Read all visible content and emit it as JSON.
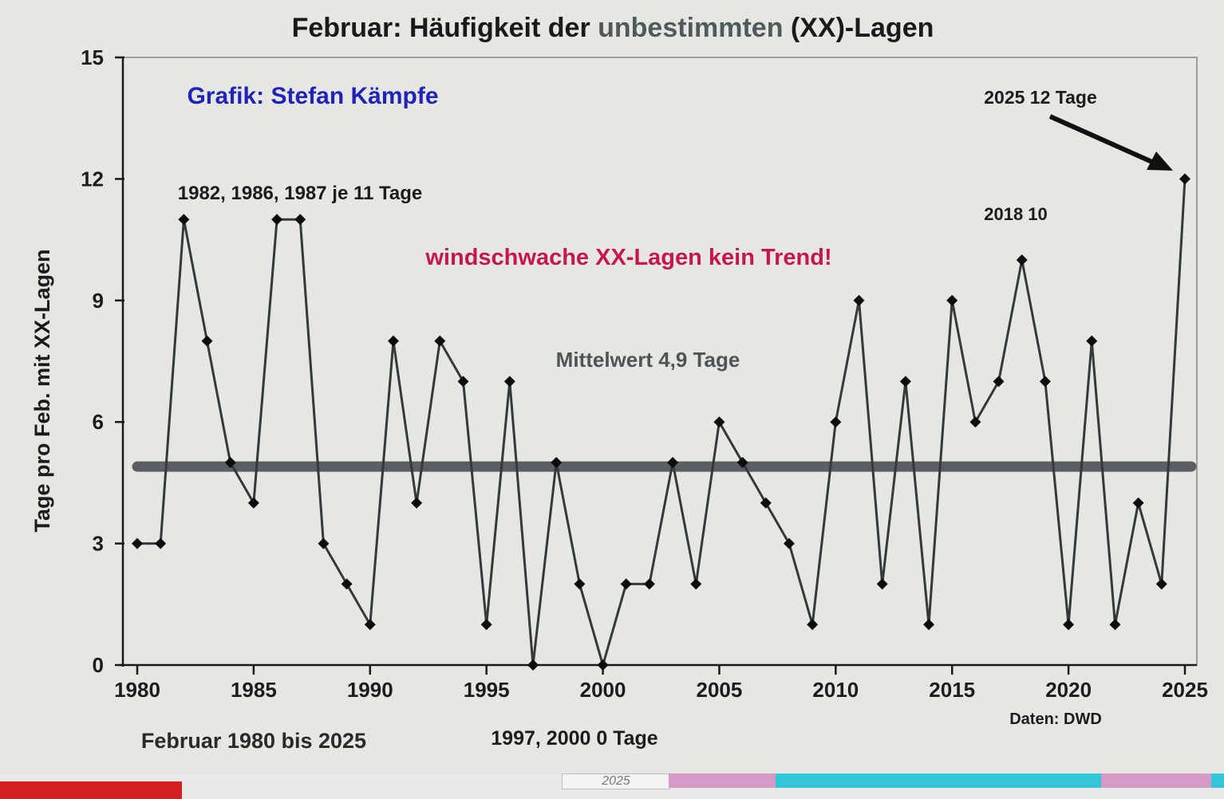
{
  "chart_data": {
    "type": "line",
    "title_prefix": "Februar: Häufigkeit der ",
    "title_highlight": "unbestimmten",
    "title_suffix": " (XX)-Lagen",
    "ylabel": "Tage pro Feb. mit XX-Lagen",
    "xlabel": "",
    "xlim": [
      1980,
      2025
    ],
    "ylim": [
      0,
      15
    ],
    "x_ticks": [
      1980,
      1985,
      1990,
      1995,
      2000,
      2005,
      2010,
      2015,
      2020,
      2025
    ],
    "y_ticks": [
      0,
      3,
      6,
      9,
      12,
      15
    ],
    "grid": false,
    "legend": "none",
    "series": [
      {
        "x": [
          1980,
          1981,
          1982,
          1983,
          1984,
          1985,
          1986,
          1987,
          1988,
          1989,
          1990,
          1991,
          1992,
          1993,
          1994,
          1995,
          1996,
          1997,
          1998,
          1999,
          2000,
          2001,
          2002,
          2003,
          2004,
          2005,
          2006,
          2007,
          2008,
          2009,
          2010,
          2011,
          2012,
          2013,
          2014,
          2015,
          2016,
          2017,
          2018,
          2019,
          2020,
          2021,
          2022,
          2023,
          2024,
          2025
        ],
        "values": [
          3,
          3,
          11,
          8,
          5,
          4,
          11,
          11,
          3,
          2,
          1,
          8,
          4,
          8,
          7,
          1,
          7,
          0,
          5,
          2,
          0,
          2,
          2,
          5,
          2,
          6,
          5,
          4,
          3,
          1,
          6,
          9,
          2,
          7,
          1,
          9,
          6,
          7,
          10,
          7,
          1,
          8,
          1,
          4,
          2,
          12
        ],
        "color": "#333a3a"
      }
    ],
    "mean": {
      "value": 4.9,
      "label": "Mittelwert 4,9 Tage",
      "color": "#5a6062"
    },
    "annotations": {
      "credit": "Grafik: Stefan Kämpfe",
      "peaks": "1982, 1986, 1987 je 11 Tage",
      "trend": "windschwache XX-Lagen kein Trend!",
      "y2018": "2018 10",
      "y2025": "2025 12 Tage",
      "zeros": "1997, 2000 0 Tage",
      "period": "Februar 1980 bis 2025",
      "source": "Daten: DWD"
    },
    "colors": {
      "credit": "#1f23b8",
      "trend": "#c4184c",
      "title": "#1a1a1a",
      "title_highlight": "#4e5a5c"
    }
  },
  "bottom_strip_text": "2025"
}
